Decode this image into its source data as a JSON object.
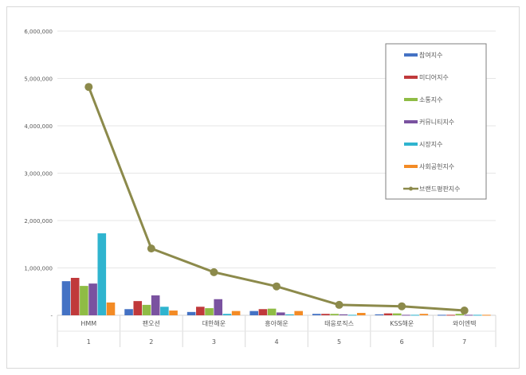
{
  "chart_data": {
    "type": "bar",
    "title": "",
    "xlabel": "",
    "ylabel": "",
    "ylim": [
      0,
      6000000
    ],
    "yticks": [
      "-",
      "1,000,000",
      "2,000,000",
      "3,000,000",
      "4,000,000",
      "5,000,000",
      "6,000,000"
    ],
    "categories": [
      "HMM",
      "팬오션",
      "대한해운",
      "흥아해운",
      "태웅로직스",
      "KSS해운",
      "와이엔텍"
    ],
    "ranks": [
      "1",
      "2",
      "3",
      "4",
      "5",
      "6",
      "7"
    ],
    "legend_position": "top-right",
    "series": [
      {
        "name": "참여지수",
        "type": "bar",
        "color": "#4472c4",
        "values": [
          720000,
          130000,
          70000,
          90000,
          30000,
          20000,
          10000
        ]
      },
      {
        "name": "미디어지수",
        "type": "bar",
        "color": "#c0393b",
        "values": [
          790000,
          300000,
          180000,
          130000,
          30000,
          40000,
          10000
        ]
      },
      {
        "name": "소통지수",
        "type": "bar",
        "color": "#8fbc45",
        "values": [
          620000,
          220000,
          150000,
          140000,
          30000,
          40000,
          30000
        ]
      },
      {
        "name": "커뮤니티지수",
        "type": "bar",
        "color": "#7a52a0",
        "values": [
          670000,
          420000,
          340000,
          60000,
          20000,
          10000,
          10000
        ]
      },
      {
        "name": "시장지수",
        "type": "bar",
        "color": "#2fb4cf",
        "values": [
          1730000,
          180000,
          30000,
          20000,
          10000,
          10000,
          10000
        ]
      },
      {
        "name": "사회공헌지수",
        "type": "bar",
        "color": "#f38b25",
        "values": [
          270000,
          100000,
          90000,
          90000,
          50000,
          30000,
          10000
        ]
      },
      {
        "name": "브랜드평판지수",
        "type": "line",
        "color": "#8c8a4b",
        "values": [
          4820000,
          1410000,
          910000,
          610000,
          220000,
          190000,
          100000
        ]
      }
    ]
  }
}
